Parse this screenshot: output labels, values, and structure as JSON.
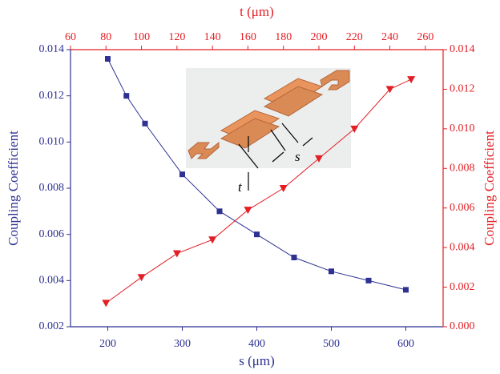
{
  "chart_data": {
    "type": "line",
    "xlabel": "s (μm)",
    "x2label": "t (μm)",
    "ylabel": "Coupling Coefficient",
    "y2label": "Coupling Coefficient",
    "xlim": [
      150,
      650
    ],
    "xticks": [
      200,
      300,
      400,
      500,
      600
    ],
    "x2lim": [
      60,
      270
    ],
    "x2ticks": [
      60,
      80,
      100,
      120,
      140,
      160,
      180,
      200,
      220,
      240,
      260
    ],
    "ylim": [
      0.002,
      0.014
    ],
    "yticks": [
      0.002,
      0.004,
      0.006,
      0.008,
      {
        "value": 0.01,
        "label": "0.010"
      },
      0.012,
      0.014
    ],
    "y2lim": [
      0,
      0.014
    ],
    "y2ticks": [
      {
        "value": 0,
        "label": "0.000"
      },
      0.002,
      0.004,
      0.006,
      0.008,
      {
        "value": 0.01,
        "label": "0.010"
      },
      0.012,
      0.014
    ],
    "series": [
      {
        "color": "#2e3192",
        "marker": "square",
        "xaxis": "x",
        "axis": "y",
        "x": [
          200,
          225,
          250,
          300,
          350,
          400,
          450,
          500,
          550,
          600
        ],
        "values": [
          0.0136,
          0.012,
          0.0108,
          0.0086,
          0.007,
          0.006,
          0.005,
          0.0044,
          0.004,
          0.0036
        ]
      },
      {
        "color": "#e31e24",
        "marker": "triangle-down",
        "xaxis": "x2",
        "axis": "y2",
        "x": [
          80,
          100,
          120,
          140,
          160,
          180,
          200,
          220,
          240,
          252
        ],
        "values": [
          0.0012,
          0.0025,
          0.0037,
          0.0044,
          0.0059,
          0.007,
          0.0085,
          0.01,
          0.012,
          0.0125
        ]
      }
    ],
    "inset_labels": [
      "t",
      "s"
    ]
  }
}
